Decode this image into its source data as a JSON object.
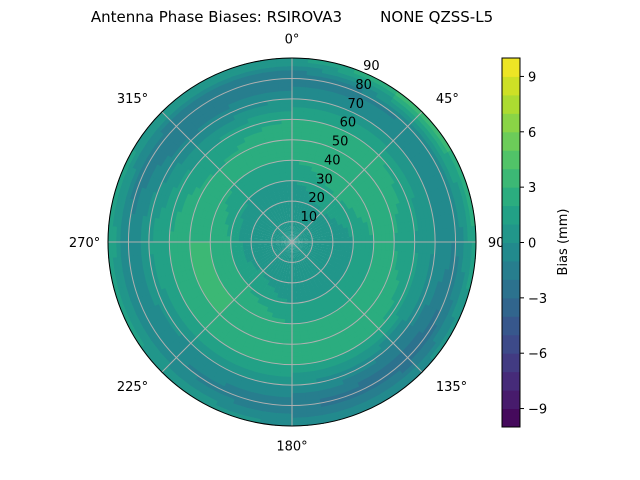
{
  "chart_data": {
    "type": "heatmap",
    "subtype": "polar-contour",
    "title": "Antenna Phase Biases: RSIROVA3        NONE QZSS-L5",
    "theta_tick_labels": [
      "0°",
      "45°",
      "90°",
      "135°",
      "180°",
      "225°",
      "270°",
      "315°"
    ],
    "radial_tick_labels": [
      "10",
      "20",
      "30",
      "40",
      "50",
      "60",
      "70",
      "80",
      "90"
    ],
    "radial_range": [
      0,
      90
    ],
    "theta_direction": "clockwise",
    "theta_zero": "north",
    "grid": true,
    "colormap": "viridis",
    "colorbar": {
      "label": "Bias (mm)",
      "range": [
        -10,
        10
      ],
      "levels": 20,
      "tick_values": [
        -9,
        -6,
        -3,
        0,
        3,
        6,
        9
      ],
      "tick_labels": [
        "−9",
        "−6",
        "−3",
        "0",
        "3",
        "6",
        "9"
      ]
    },
    "azimuths": [
      0,
      45,
      90,
      135,
      180,
      225,
      270,
      315
    ],
    "zeniths": [
      0,
      10,
      20,
      30,
      40,
      50,
      60,
      70,
      80,
      90
    ],
    "values": [
      [
        0,
        0,
        0,
        1,
        2,
        3,
        2,
        0,
        -2,
        1
      ],
      [
        0,
        0,
        1,
        2,
        3,
        3,
        2,
        0,
        -1,
        4
      ],
      [
        0,
        0,
        0,
        1,
        2,
        2,
        1,
        0,
        -1,
        2
      ],
      [
        0,
        0,
        0,
        1,
        2,
        3,
        2,
        -1,
        -3,
        0
      ],
      [
        0,
        0,
        0,
        1,
        2,
        3,
        2,
        0,
        -2,
        0
      ],
      [
        0,
        0,
        1,
        2,
        3,
        3,
        2,
        0,
        -1,
        1
      ],
      [
        0,
        0,
        0,
        2,
        3,
        3,
        2,
        1,
        -1,
        2
      ],
      [
        0,
        0,
        0,
        1,
        2,
        2,
        1,
        -1,
        -2,
        1
      ]
    ]
  }
}
